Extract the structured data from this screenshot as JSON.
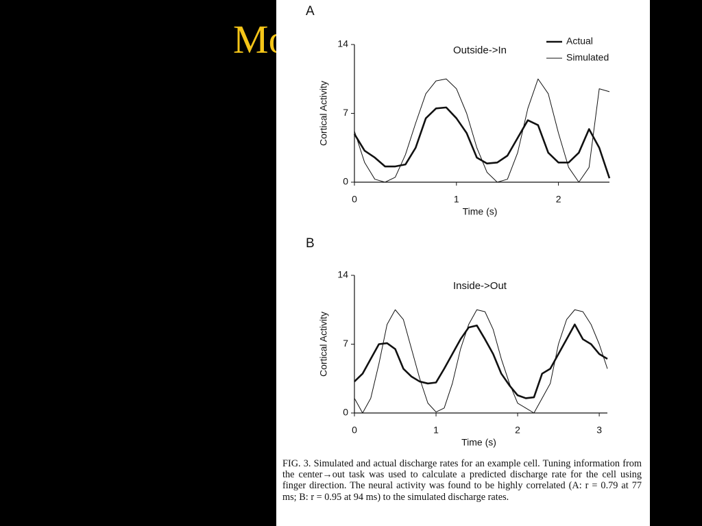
{
  "slide_title": "Mo",
  "caption": "FIG. 3. Simulated and actual discharge rates for an example cell. Tuning information from the center→out task was used to calculate a predicted discharge rate for the cell using finger direction. The neural activity was found to be highly correlated (A: r = 0.79 at 77 ms; B: r = 0.95 at 94 ms) to the simulated discharge rates.",
  "chart_data": [
    {
      "type": "line",
      "panel": "A",
      "annotation": "Outside->In",
      "x_label": "Time (s)",
      "y_label": "Cortical Activity",
      "legend": "top-right",
      "x": [
        0,
        0.1,
        0.2,
        0.3,
        0.4,
        0.5,
        0.6,
        0.7,
        0.8,
        0.9,
        1.0,
        1.1,
        1.2,
        1.3,
        1.4,
        1.5,
        1.6,
        1.7,
        1.8,
        1.9,
        2.0,
        2.1,
        2.2,
        2.3,
        2.4,
        2.5
      ],
      "series": [
        {
          "name": "Actual",
          "color": "#111111",
          "line_width": 2.6,
          "values": [
            4.9,
            3.2,
            2.5,
            1.6,
            1.6,
            1.8,
            3.5,
            6.5,
            7.5,
            7.6,
            6.5,
            5.0,
            2.5,
            1.9,
            2.0,
            2.7,
            4.5,
            6.3,
            5.8,
            3.0,
            2.0,
            2.0,
            3.0,
            5.4,
            3.5,
            0.4
          ]
        },
        {
          "name": "Simulated",
          "color": "#111111",
          "line_width": 1,
          "values": [
            5.2,
            2.0,
            0.3,
            0,
            0.5,
            2.8,
            6.0,
            9.0,
            10.3,
            10.5,
            9.5,
            7.0,
            3.5,
            1.0,
            0,
            0.3,
            3.0,
            7.5,
            10.5,
            9.0,
            5.0,
            1.5,
            0,
            1.5,
            9.5,
            9.2
          ]
        }
      ],
      "xlim": [
        0,
        2.5
      ],
      "xticks": [
        0,
        1,
        2
      ],
      "ylim": [
        0,
        14
      ],
      "yticks": [
        0,
        7,
        14
      ]
    },
    {
      "type": "line",
      "panel": "B",
      "annotation": "Inside->Out",
      "x_label": "Time (s)",
      "y_label": "Cortical Activity",
      "x": [
        0,
        0.1,
        0.2,
        0.3,
        0.4,
        0.5,
        0.6,
        0.7,
        0.8,
        0.9,
        1.0,
        1.1,
        1.2,
        1.3,
        1.4,
        1.5,
        1.6,
        1.7,
        1.8,
        1.9,
        2.0,
        2.1,
        2.2,
        2.3,
        2.4,
        2.5,
        2.6,
        2.7,
        2.8,
        2.9,
        3.0,
        3.1
      ],
      "series": [
        {
          "color": "#111111",
          "line_width": 2.6,
          "values": [
            3.2,
            4.0,
            5.5,
            7.0,
            7.1,
            6.5,
            4.5,
            3.7,
            3.2,
            3.0,
            3.1,
            4.5,
            6.0,
            7.5,
            8.7,
            8.9,
            7.5,
            6.0,
            4.0,
            2.8,
            1.8,
            1.5,
            1.6,
            4.0,
            4.5,
            6.0,
            7.5,
            9.0,
            7.5,
            7.0,
            6.0,
            5.5
          ]
        },
        {
          "color": "#111111",
          "line_width": 1,
          "values": [
            1.5,
            0,
            1.5,
            5.0,
            9.0,
            10.5,
            9.5,
            6.5,
            3.5,
            1.0,
            0.1,
            0.5,
            3.0,
            6.5,
            9.0,
            10.5,
            10.3,
            8.5,
            5.5,
            3.0,
            1.0,
            0.5,
            0,
            1.5,
            3.0,
            7.0,
            9.5,
            10.5,
            10.3,
            9.0,
            7.0,
            4.5
          ]
        }
      ],
      "xlim": [
        0,
        3.1
      ],
      "xticks": [
        0,
        1,
        2,
        3
      ],
      "ylim": [
        0,
        14
      ],
      "yticks": [
        0,
        7,
        14
      ]
    }
  ]
}
